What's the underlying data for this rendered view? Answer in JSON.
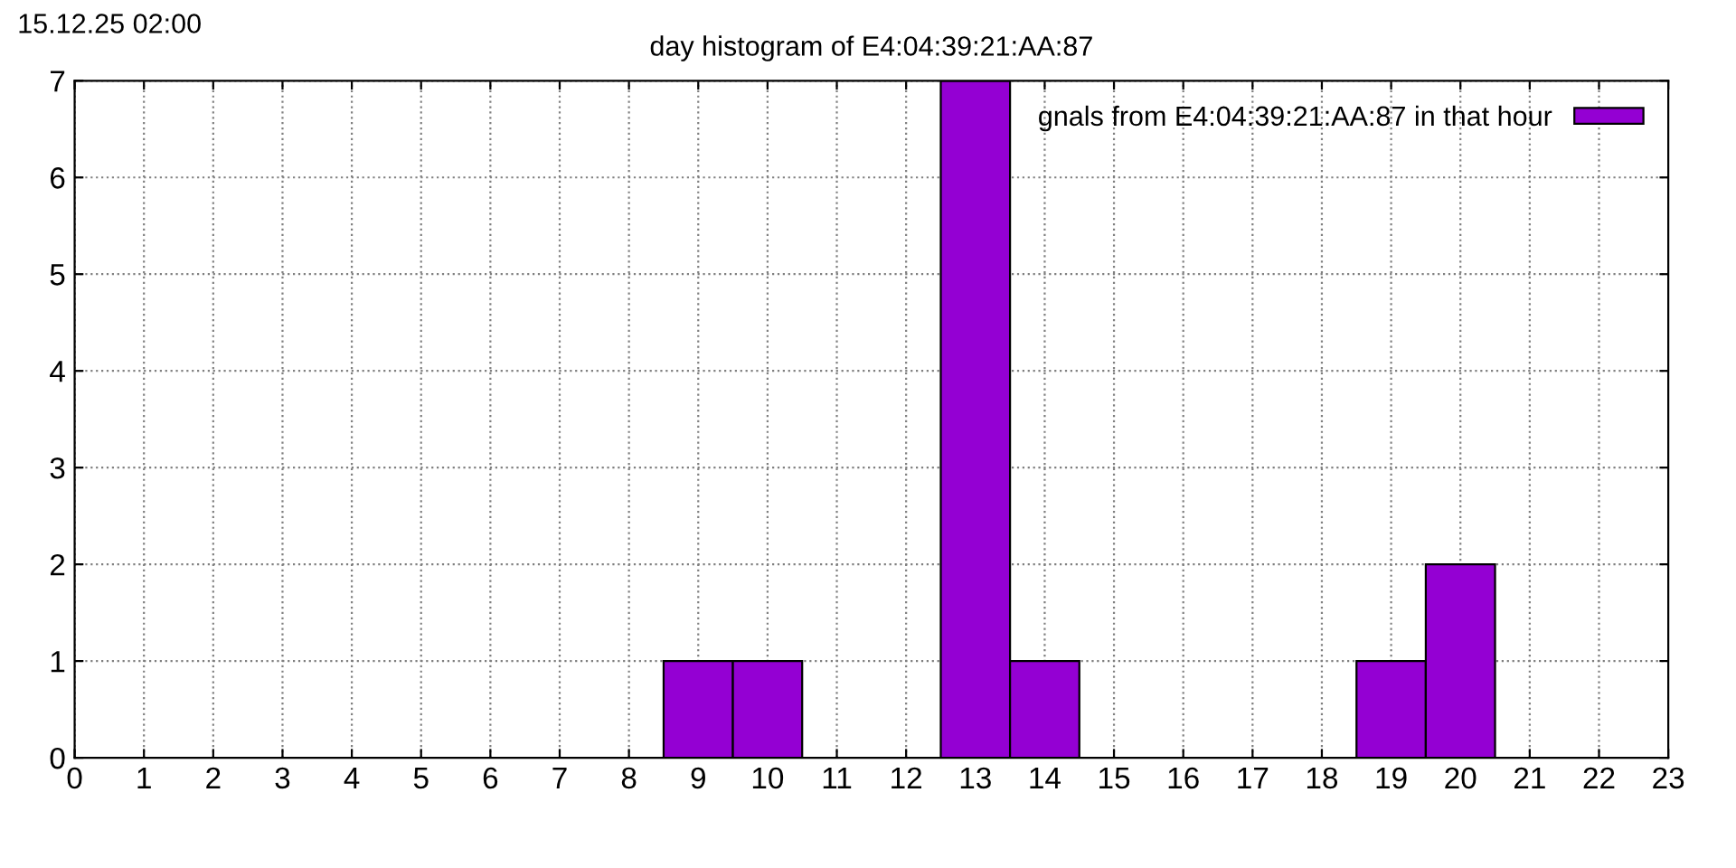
{
  "chart_data": {
    "type": "bar",
    "title": "day histogram of E4:04:39:21:AA:87",
    "annotations": [
      "15.12.25 02:00"
    ],
    "x": [
      9,
      10,
      13,
      14,
      19,
      20
    ],
    "series": [
      {
        "name": "gnals from E4:04:39:21:AA:87 in that hour",
        "color": "#9400d3",
        "values": [
          1,
          1,
          7,
          1,
          1,
          2
        ]
      }
    ],
    "xlim": [
      0,
      23
    ],
    "xticks": [
      0,
      1,
      2,
      3,
      4,
      5,
      6,
      7,
      8,
      9,
      10,
      11,
      12,
      13,
      14,
      15,
      16,
      17,
      18,
      19,
      20,
      21,
      22,
      23
    ],
    "ylim": [
      0,
      7
    ],
    "yticks": [
      0,
      1,
      2,
      3,
      4,
      5,
      6,
      7
    ],
    "grid": true,
    "line_style": "dotted",
    "legend": "top right"
  }
}
